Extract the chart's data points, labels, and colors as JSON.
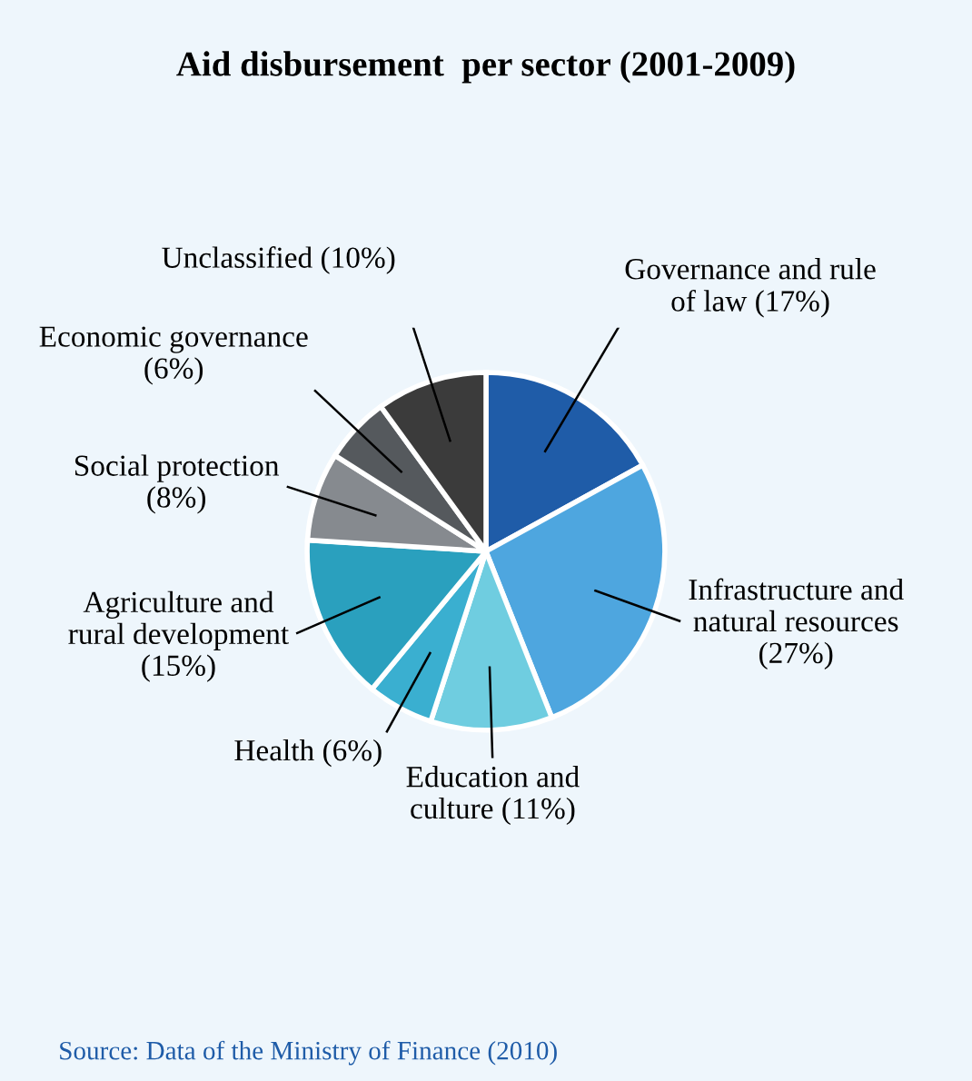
{
  "chart_data": {
    "type": "pie",
    "title": "Aid disbursement  per sector (2001-2009)",
    "categories": [
      "Governance and rule of law  (17%)",
      "Infrastructure and  natural resources (27%)",
      "Education and culture (11%)",
      "Health (6%)",
      "Agriculture and rural development (15%)",
      "Social protection (8%)",
      "Economic governance (6%)",
      "Unclassified (10%)"
    ],
    "values": [
      17,
      27,
      11,
      6,
      15,
      8,
      6,
      10
    ],
    "colors": [
      "#1f5ca8",
      "#4ea6df",
      "#6fcde0",
      "#3aafd0",
      "#2aa0be",
      "#868a8f",
      "#55595d",
      "#3b3b3b"
    ],
    "annotations": [
      "Source: Data of the Ministry of Finance (2010)"
    ]
  }
}
